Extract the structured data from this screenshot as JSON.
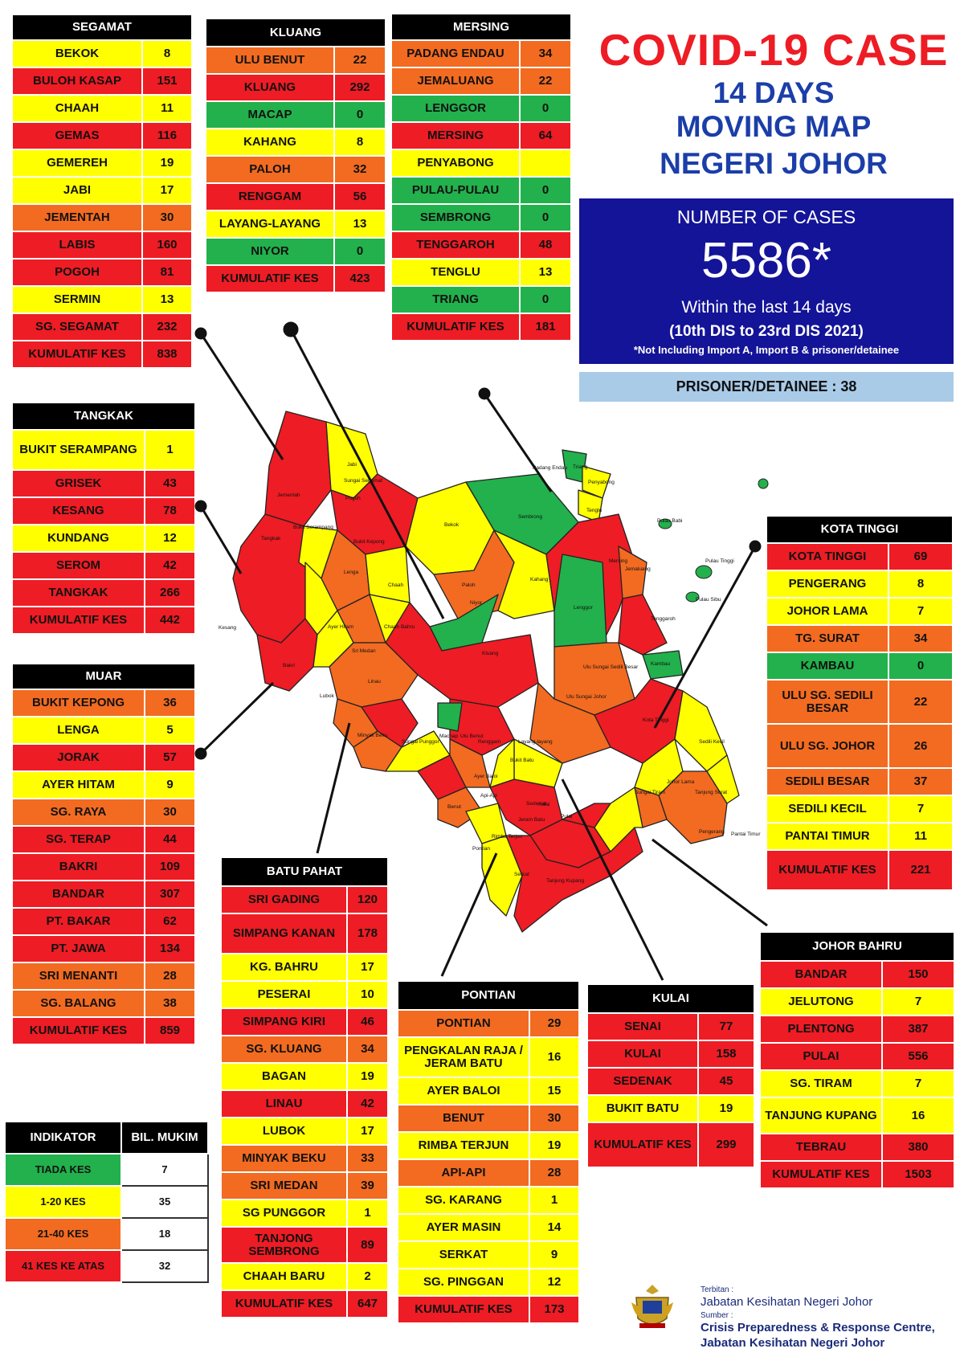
{
  "header": {
    "line1": "COVID-19 CASE",
    "line2": "14 DAYS",
    "line3": "MOVING MAP",
    "line4": "NEGERI JOHOR"
  },
  "cases_box": {
    "label": "NUMBER OF CASES",
    "total": "5586*",
    "period_text": "Within the last 14 days",
    "date_range": "(10th DIS to 23rd DIS 2021)",
    "footnote": "*Not Including Import A, Import B & prisoner/detainee"
  },
  "prisoner": "PRISONER/DETAINEE : 38",
  "colors": {
    "red": "#ee1c24",
    "orange": "#f26b21",
    "yellow": "#ffff00",
    "green": "#22b14c",
    "navy": "#141498"
  },
  "districts": {
    "segamat": {
      "name": "SEGAMAT",
      "rows": [
        {
          "mukim": "BEKOK",
          "cases": "8"
        },
        {
          "mukim": "BULOH KASAP",
          "cases": "151"
        },
        {
          "mukim": "CHAAH",
          "cases": "11"
        },
        {
          "mukim": "GEMAS",
          "cases": "116"
        },
        {
          "mukim": "GEMEREH",
          "cases": "19"
        },
        {
          "mukim": "JABI",
          "cases": "17"
        },
        {
          "mukim": "JEMENTAH",
          "cases": "30"
        },
        {
          "mukim": "LABIS",
          "cases": "160"
        },
        {
          "mukim": "POGOH",
          "cases": "81"
        },
        {
          "mukim": "SERMIN",
          "cases": "13"
        },
        {
          "mukim": "SG. SEGAMAT",
          "cases": "232"
        },
        {
          "mukim": "KUMULATIF KES",
          "cases": "838"
        }
      ]
    },
    "kluang": {
      "name": "KLUANG",
      "rows": [
        {
          "mukim": "ULU BENUT",
          "cases": "22"
        },
        {
          "mukim": "KLUANG",
          "cases": "292"
        },
        {
          "mukim": "MACAP",
          "cases": "0"
        },
        {
          "mukim": "KAHANG",
          "cases": "8"
        },
        {
          "mukim": "PALOH",
          "cases": "32"
        },
        {
          "mukim": "RENGGAM",
          "cases": "56"
        },
        {
          "mukim": "LAYANG-LAYANG",
          "cases": "13"
        },
        {
          "mukim": "NIYOR",
          "cases": "0"
        },
        {
          "mukim": "KUMULATIF KES",
          "cases": "423"
        }
      ]
    },
    "mersing": {
      "name": "MERSING",
      "rows": [
        {
          "mukim": "PADANG ENDAU",
          "cases": "34"
        },
        {
          "mukim": "JEMALUANG",
          "cases": "22"
        },
        {
          "mukim": "LENGGOR",
          "cases": "0"
        },
        {
          "mukim": "MERSING",
          "cases": "64"
        },
        {
          "mukim": "PENYABONG",
          "cases": ""
        },
        {
          "mukim": "PULAU-PULAU",
          "cases": "0"
        },
        {
          "mukim": "SEMBRONG",
          "cases": "0"
        },
        {
          "mukim": "TENGGAROH",
          "cases": "48"
        },
        {
          "mukim": "TENGLU",
          "cases": "13"
        },
        {
          "mukim": "TRIANG",
          "cases": "0"
        },
        {
          "mukim": "KUMULATIF KES",
          "cases": "181"
        }
      ]
    },
    "tangkak": {
      "name": "TANGKAK",
      "rows": [
        {
          "mukim": "BUKIT SERAMPANG",
          "cases": "1"
        },
        {
          "mukim": "GRISEK",
          "cases": "43"
        },
        {
          "mukim": "KESANG",
          "cases": "78"
        },
        {
          "mukim": "KUNDANG",
          "cases": "12"
        },
        {
          "mukim": "SEROM",
          "cases": "42"
        },
        {
          "mukim": "TANGKAK",
          "cases": "266"
        },
        {
          "mukim": "KUMULATIF KES",
          "cases": "442"
        }
      ]
    },
    "muar": {
      "name": "MUAR",
      "rows": [
        {
          "mukim": "BUKIT KEPONG",
          "cases": "36"
        },
        {
          "mukim": "LENGA",
          "cases": "5"
        },
        {
          "mukim": "JORAK",
          "cases": "57"
        },
        {
          "mukim": "AYER HITAM",
          "cases": "9"
        },
        {
          "mukim": "SG. RAYA",
          "cases": "30"
        },
        {
          "mukim": "SG. TERAP",
          "cases": "44"
        },
        {
          "mukim": "BAKRI",
          "cases": "109"
        },
        {
          "mukim": "BANDAR",
          "cases": "307"
        },
        {
          "mukim": "PT. BAKAR",
          "cases": "62"
        },
        {
          "mukim": "PT. JAWA",
          "cases": "134"
        },
        {
          "mukim": "SRI MENANTI",
          "cases": "28"
        },
        {
          "mukim": "SG. BALANG",
          "cases": "38"
        },
        {
          "mukim": "KUMULATIF KES",
          "cases": "859"
        }
      ]
    },
    "kota_tinggi": {
      "name": "KOTA TINGGI",
      "rows": [
        {
          "mukim": "KOTA TINGGI",
          "cases": "69"
        },
        {
          "mukim": "PENGERANG",
          "cases": "8"
        },
        {
          "mukim": "JOHOR LAMA",
          "cases": "7"
        },
        {
          "mukim": "TG. SURAT",
          "cases": "34"
        },
        {
          "mukim": "KAMBAU",
          "cases": "0"
        },
        {
          "mukim": "ULU SG. SEDILI BESAR",
          "cases": "22"
        },
        {
          "mukim": "ULU  SG. JOHOR",
          "cases": "26"
        },
        {
          "mukim": "SEDILI BESAR",
          "cases": "37"
        },
        {
          "mukim": "SEDILI KECIL",
          "cases": "7"
        },
        {
          "mukim": "PANTAI TIMUR",
          "cases": "11"
        },
        {
          "mukim": "KUMULATIF KES",
          "cases": "221"
        }
      ]
    },
    "batu_pahat": {
      "name": "BATU PAHAT",
      "rows": [
        {
          "mukim": "SRI GADING",
          "cases": "120"
        },
        {
          "mukim": "SIMPANG KANAN",
          "cases": "178"
        },
        {
          "mukim": "KG. BAHRU",
          "cases": "17"
        },
        {
          "mukim": "PESERAI",
          "cases": "10"
        },
        {
          "mukim": "SIMPANG KIRI",
          "cases": "46"
        },
        {
          "mukim": "SG. KLUANG",
          "cases": "34"
        },
        {
          "mukim": "BAGAN",
          "cases": "19"
        },
        {
          "mukim": "LINAU",
          "cases": "42"
        },
        {
          "mukim": "LUBOK",
          "cases": "17"
        },
        {
          "mukim": "MINYAK BEKU",
          "cases": "33"
        },
        {
          "mukim": "SRI MEDAN",
          "cases": "39"
        },
        {
          "mukim": "SG PUNGGOR",
          "cases": "1"
        },
        {
          "mukim": "TANJONG SEMBRONG",
          "cases": "89"
        },
        {
          "mukim": "CHAAH BARU",
          "cases": "2"
        },
        {
          "mukim": "KUMULATIF KES",
          "cases": "647"
        }
      ]
    },
    "pontian": {
      "name": "PONTIAN",
      "rows": [
        {
          "mukim": "PONTIAN",
          "cases": "29"
        },
        {
          "mukim": "PENGKALAN RAJA / JERAM BATU",
          "cases": "16"
        },
        {
          "mukim": "AYER BALOI",
          "cases": "15"
        },
        {
          "mukim": "BENUT",
          "cases": "30"
        },
        {
          "mukim": "RIMBA TERJUN",
          "cases": "19"
        },
        {
          "mukim": "API-API",
          "cases": "28"
        },
        {
          "mukim": "SG. KARANG",
          "cases": "1"
        },
        {
          "mukim": "AYER MASIN",
          "cases": "14"
        },
        {
          "mukim": "SERKAT",
          "cases": "9"
        },
        {
          "mukim": "SG. PINGGAN",
          "cases": "12"
        },
        {
          "mukim": "KUMULATIF KES",
          "cases": "173"
        }
      ]
    },
    "kulai": {
      "name": "KULAI",
      "rows": [
        {
          "mukim": "SENAI",
          "cases": "77"
        },
        {
          "mukim": "KULAI",
          "cases": "158"
        },
        {
          "mukim": "SEDENAK",
          "cases": "45"
        },
        {
          "mukim": "BUKIT BATU",
          "cases": "19"
        },
        {
          "mukim": "KUMULATIF KES",
          "cases": "299"
        }
      ]
    },
    "johor_bahru": {
      "name": "JOHOR BAHRU",
      "rows": [
        {
          "mukim": "BANDAR",
          "cases": "150"
        },
        {
          "mukim": "JELUTONG",
          "cases": "7"
        },
        {
          "mukim": "PLENTONG",
          "cases": "387"
        },
        {
          "mukim": "PULAI",
          "cases": "556"
        },
        {
          "mukim": "SG. TIRAM",
          "cases": "7"
        },
        {
          "mukim": "TANJUNG KUPANG",
          "cases": "16"
        },
        {
          "mukim": "TEBRAU",
          "cases": "380"
        },
        {
          "mukim": "KUMULATIF KES",
          "cases": "1503"
        }
      ]
    }
  },
  "indikator": {
    "header": "INDIKATOR",
    "col2": "BIL. MUKIM",
    "rows": [
      {
        "label": "TIADA KES",
        "count": "7"
      },
      {
        "label": "1-20 KES",
        "count": "35"
      },
      {
        "label": "21-40 KES",
        "count": "18"
      },
      {
        "label": "41 KES KE ATAS",
        "count": "32"
      }
    ]
  },
  "map_labels": {
    "grisek": "Grisek",
    "ayer_merah": "Sg. Meh",
    "jabi": "Jabi",
    "jementah": "Jementah",
    "sungai_segamat": "Sungai Segamat",
    "pogoh": "Pogoh",
    "tangkak": "Tangkak",
    "bukit_serampang": "Bukit Serampang",
    "bukit_kepong": "Bukit Kepong",
    "lenga": "Lenga",
    "chaah": "Chaah",
    "bekok": "Bekok",
    "sembrong": "Sembrong",
    "paloh": "Paloh",
    "kahang": "Kahang",
    "niyor": "Niyor",
    "lenggor": "Lenggor",
    "mersing": "Mersing",
    "jemaluang": "Jemaluang",
    "padang_endau": "Padang Endau",
    "triang": "Triang",
    "penyabong": "Penyabong",
    "tenglu": "Tenglu",
    "pulau_babi": "Pulau Babi",
    "pulau_tinggi": "Pulau Tinggi",
    "pulau_sibu": "Pulau Sibu",
    "tenggaroh": "Tenggaroh",
    "chaah_bahru": "Chaah Bahru",
    "ayer_hitam": "Ayer Hitam",
    "sri_medan": "Sri Medan",
    "kluang": "Kluang",
    "renggam": "Renggam",
    "machap": "Machap",
    "linau": "Linau",
    "kambau": "Kambau",
    "ulu_sungai_sedili_besar": "Ulu Sungai Sedili Besar",
    "ulu_sungai_johor": "Ulu Sungai Johor",
    "kota_tinggi": "Kota Tinggi",
    "sedili_kecil": "Sedili Kecil",
    "johor_lama": "Johor Lama",
    "tanjung_surat": "Tanjung Surat",
    "pengerang": "Pengerang",
    "pantai_timur": "Pantai Timur",
    "layang_layang": "Layang-layang",
    "sedenak": "Sedenak",
    "bukit_batu": "Bukit Batu",
    "ulu_benut": "Ulu Benut",
    "benut": "Benut",
    "kulai": "Kulai",
    "sungai_tiram": "Sungai Tiram",
    "plentong": "Plentong",
    "pulai": "Pulai",
    "tebrau": "Tebrau",
    "pontian": "Pontian",
    "rimba_terjun": "Rimba Terjun",
    "serkat": "Serkat",
    "tanjung_kupang": "Tanjung Kupang",
    "minyak_beku": "Minyak Beku",
    "tanjong_sembrong": "Tanjong Sembrong",
    "sri_gading": "Sri Gading",
    "kesang": "Kesang",
    "bakri": "Bakri",
    "lubok": "Lubok",
    "sungai_balang": "Sungai Balang",
    "sungai_punggor": "Sungai Punggor",
    "ayer_baloi": "Ayer Baloi",
    "api_api": "Api-Api",
    "sungai_pinggan": "Sg Pinggan",
    "jeram_batu": "Jeram Batu",
    "senai": "Senai"
  },
  "footer": {
    "terbitan_label": "Terbitan :",
    "terbitan": "Jabatan Kesihatan Negeri Johor",
    "sumber_label": "Sumber :",
    "sumber1": "Crisis Preparedness & Response Centre,",
    "sumber2": "Jabatan Kesihatan Negeri Johor"
  }
}
